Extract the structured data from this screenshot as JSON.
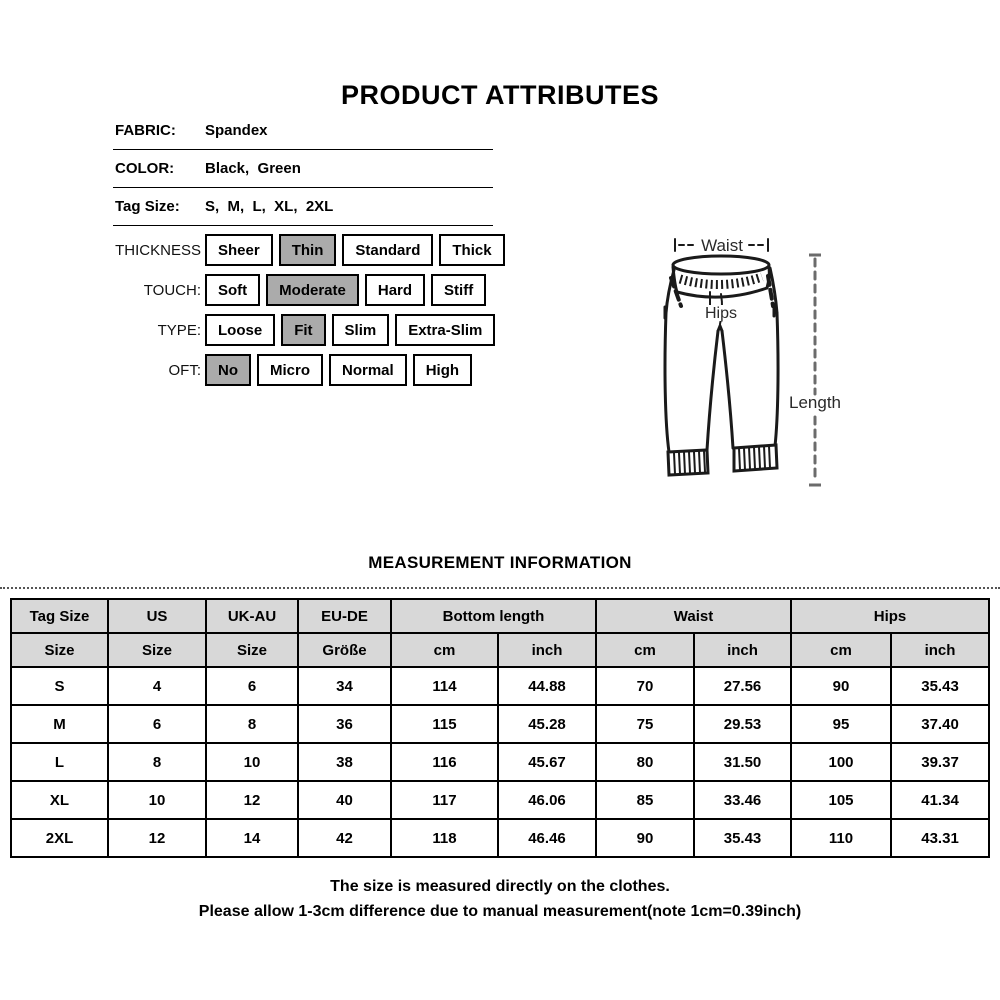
{
  "title": "PRODUCT ATTRIBUTES",
  "attributes": {
    "rows": [
      {
        "label": "FABRIC:",
        "value": "Spandex"
      },
      {
        "label": "COLOR:",
        "value": "Black,  Green"
      },
      {
        "label": "Tag Size:",
        "value": "S,  M,  L,  XL,  2XL"
      }
    ],
    "option_rows": [
      {
        "label": "THICKNESS",
        "options": [
          "Sheer",
          "Thin",
          "Standard",
          "Thick"
        ],
        "selected_index": 1
      },
      {
        "label": "TOUCH:",
        "options": [
          "Soft",
          "Moderate",
          "Hard",
          "Stiff"
        ],
        "selected_index": 1
      },
      {
        "label": "TYPE:",
        "options": [
          "Loose",
          "Fit",
          "Slim",
          "Extra-Slim"
        ],
        "selected_index": 1
      },
      {
        "label": "OFT:",
        "options": [
          "No",
          "Micro",
          "Normal",
          "High"
        ],
        "selected_index": 0
      }
    ]
  },
  "diagram": {
    "waist_label": "Waist",
    "hips_label": "Hips",
    "length_label": "Length"
  },
  "measurement": {
    "section_title": "MEASUREMENT INFORMATION",
    "table": {
      "header_row1": [
        {
          "label": "Tag Size",
          "colspan": 1
        },
        {
          "label": "US",
          "colspan": 1
        },
        {
          "label": "UK-AU",
          "colspan": 1
        },
        {
          "label": "EU-DE",
          "colspan": 1
        },
        {
          "label": "Bottom length",
          "colspan": 2
        },
        {
          "label": "Waist",
          "colspan": 2
        },
        {
          "label": "Hips",
          "colspan": 2
        }
      ],
      "header_row2": [
        "Size",
        "Size",
        "Size",
        "Größe",
        "cm",
        "inch",
        "cm",
        "inch",
        "cm",
        "inch"
      ],
      "rows": [
        [
          "S",
          "4",
          "6",
          "34",
          "114",
          "44.88",
          "70",
          "27.56",
          "90",
          "35.43"
        ],
        [
          "M",
          "6",
          "8",
          "36",
          "115",
          "45.28",
          "75",
          "29.53",
          "95",
          "37.40"
        ],
        [
          "L",
          "8",
          "10",
          "38",
          "116",
          "45.67",
          "80",
          "31.50",
          "100",
          "39.37"
        ],
        [
          "XL",
          "10",
          "12",
          "40",
          "117",
          "46.06",
          "85",
          "33.46",
          "105",
          "41.34"
        ],
        [
          "2XL",
          "12",
          "14",
          "42",
          "118",
          "46.46",
          "90",
          "35.43",
          "110",
          "43.31"
        ]
      ]
    },
    "notes": [
      "The size is measured directly on the clothes.",
      "Please allow 1-3cm difference due to manual measurement(note 1cm=0.39inch)"
    ]
  },
  "colors": {
    "selected_option_bg": "#ababab",
    "table_header_bg": "#d8d8d8",
    "border": "#000000"
  }
}
